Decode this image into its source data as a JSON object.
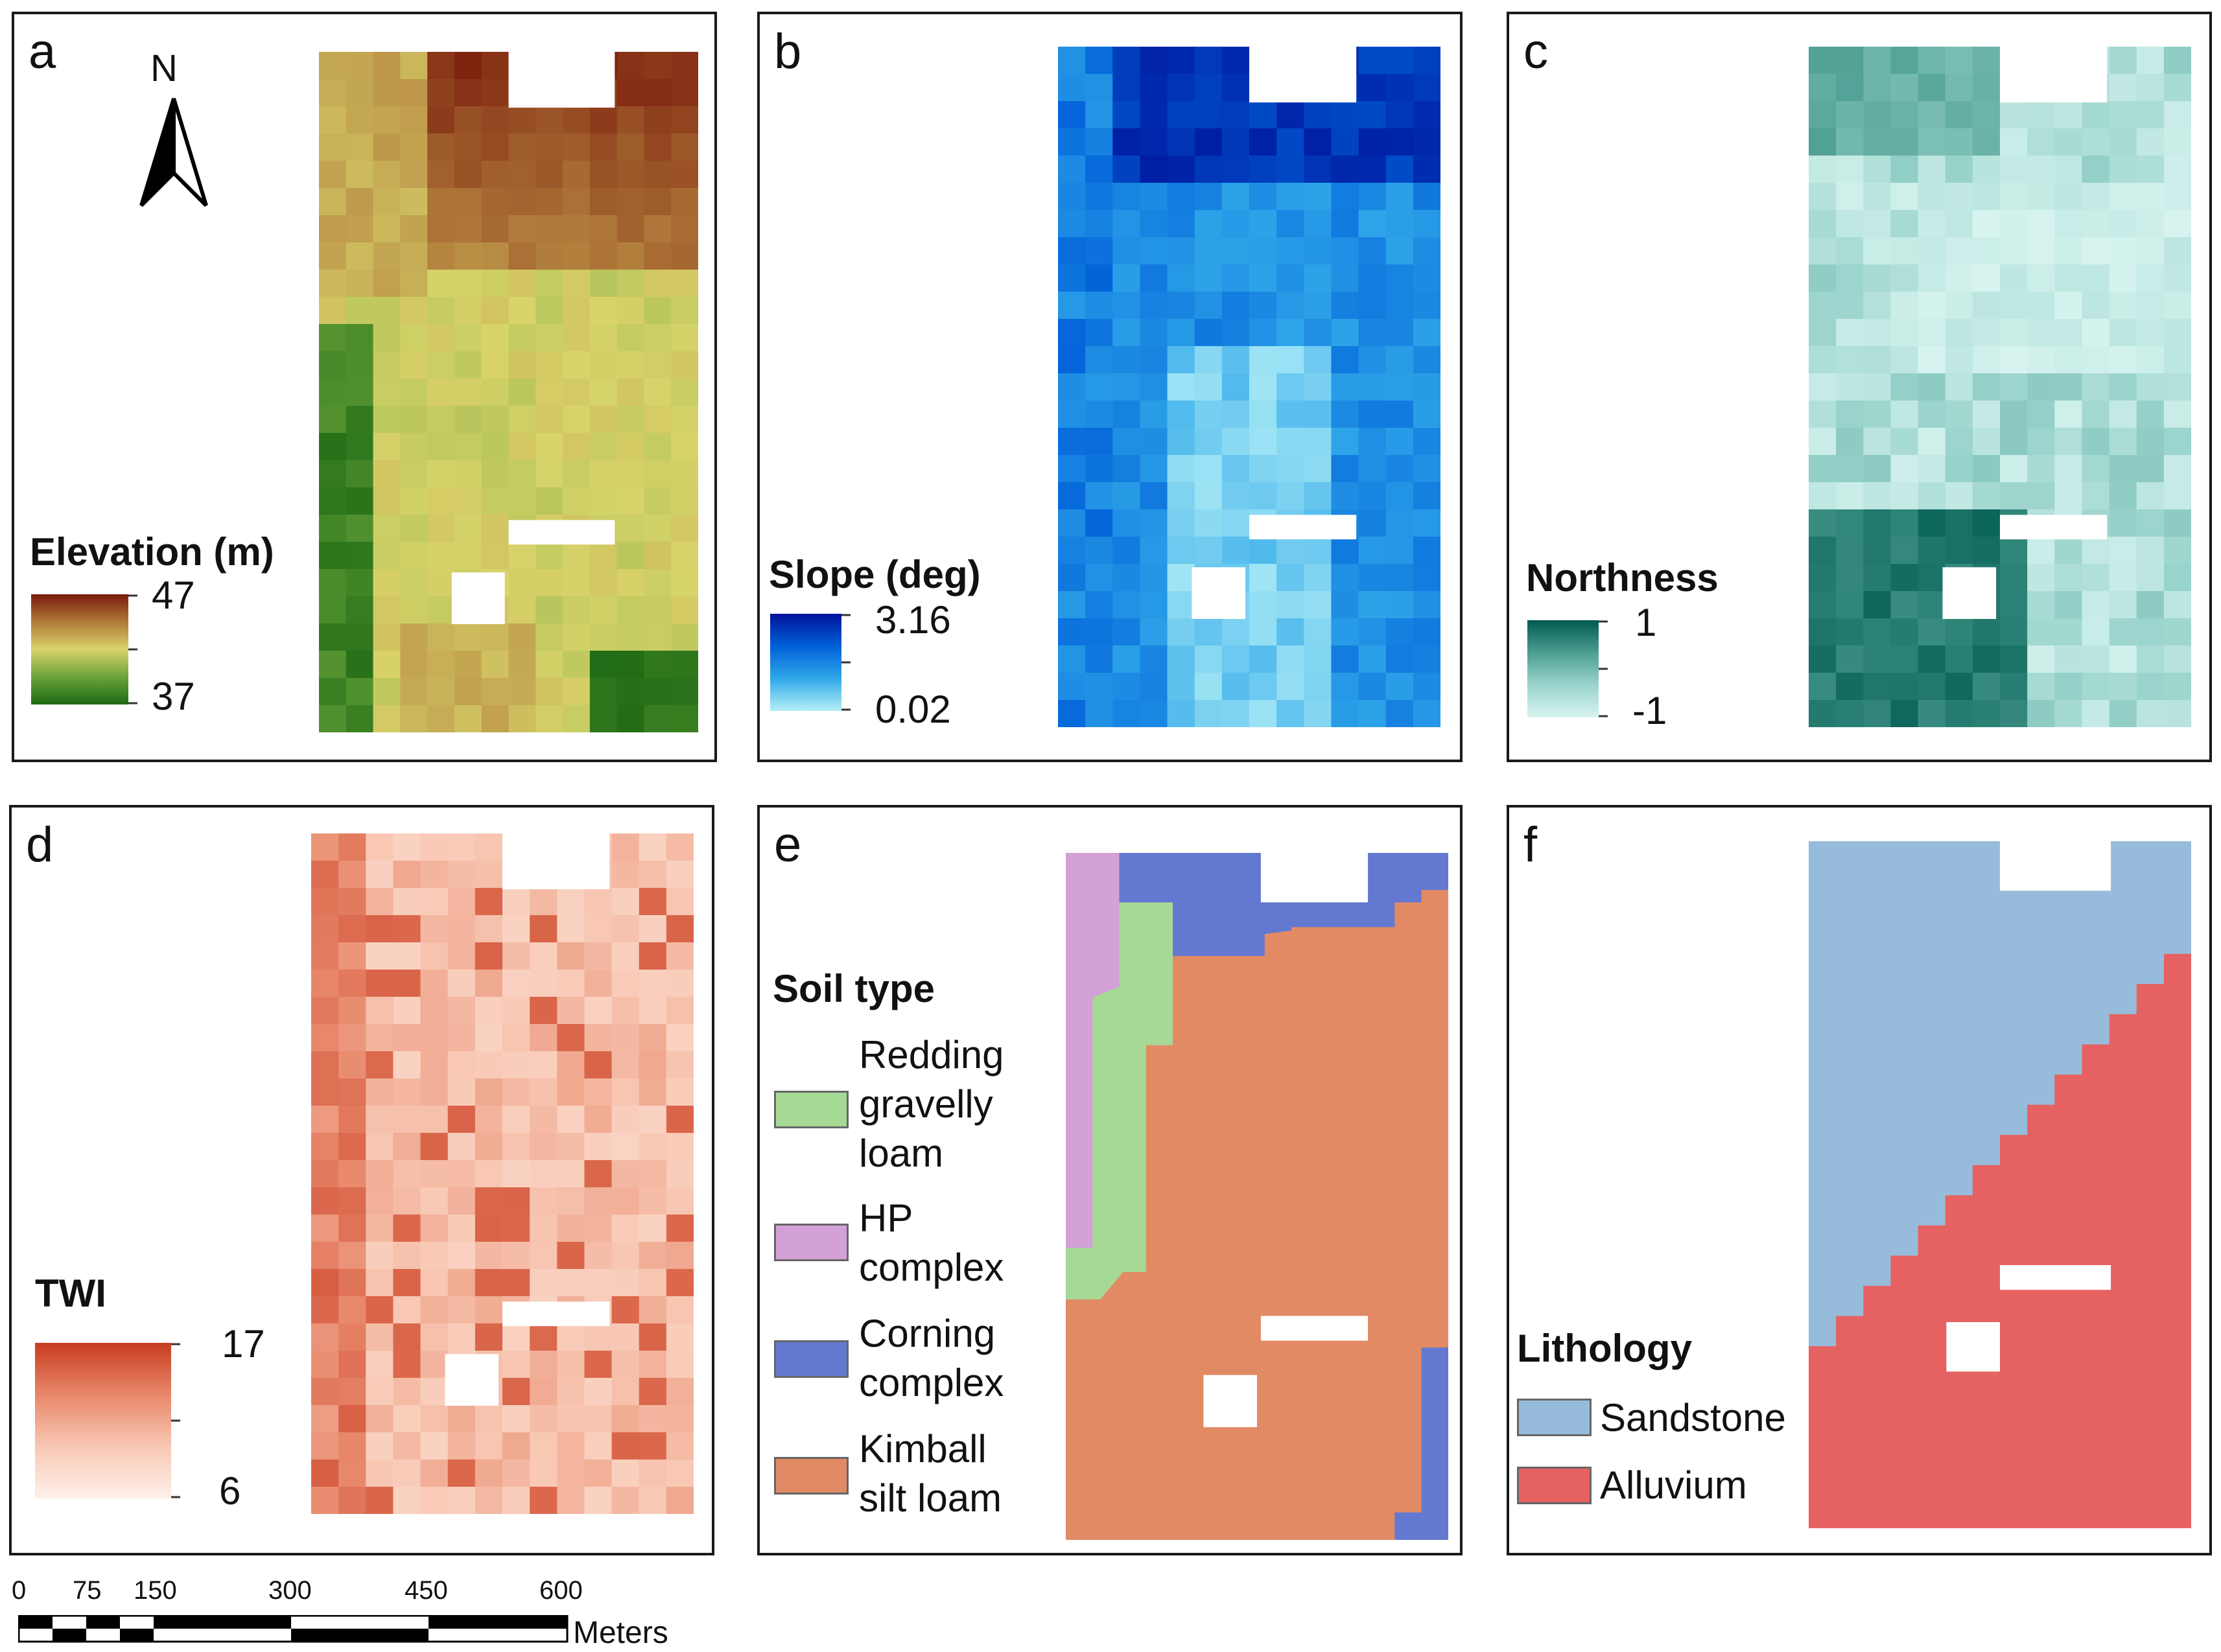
{
  "panels": {
    "a": {
      "letter": "a",
      "north_label": "N",
      "legend": {
        "title": "Elevation (m)",
        "max": "47",
        "min": "37",
        "ramp": [
          "#7a1a0a",
          "#b07a3a",
          "#d8d46a",
          "#6aa33a",
          "#1e6a14"
        ]
      },
      "icon": "north-arrow-icon"
    },
    "b": {
      "letter": "b",
      "legend": {
        "title": "Slope (deg)",
        "max": "3.16",
        "min": "0.02",
        "ramp": [
          "#00129a",
          "#0060d8",
          "#30a8ea",
          "#b4f0f6"
        ]
      }
    },
    "c": {
      "letter": "c",
      "legend": {
        "title": "Northness",
        "max": "1",
        "min": "-1",
        "ramp": [
          "#005a50",
          "#4d9e92",
          "#9ad4cc",
          "#d8f4f0"
        ]
      }
    },
    "d": {
      "letter": "d",
      "legend": {
        "title": "TWI",
        "max": "17",
        "min": "6",
        "ramp": [
          "#c83c22",
          "#e8876a",
          "#f8c8b4",
          "#fff0ea"
        ]
      }
    },
    "e": {
      "letter": "e",
      "legend_title": "Soil type",
      "classes": [
        {
          "label_lines": [
            "Redding",
            "gravelly",
            "loam"
          ],
          "color": "#a6d996"
        },
        {
          "label_lines": [
            "HP",
            "complex"
          ],
          "color": "#d3a0d8"
        },
        {
          "label_lines": [
            "Corning",
            "complex"
          ],
          "color": "#6378d0"
        },
        {
          "label_lines": [
            "Kimball",
            "silt loam"
          ],
          "color": "#e28a64"
        }
      ]
    },
    "f": {
      "letter": "f",
      "legend_title": "Lithology",
      "classes": [
        {
          "label": "Sandstone",
          "color": "#97bcdb"
        },
        {
          "label": "Alluvium",
          "color": "#e66262"
        }
      ]
    }
  },
  "scale_bar": {
    "ticks": [
      "0",
      "75",
      "150",
      "300",
      "450",
      "600"
    ],
    "unit": "Meters"
  }
}
